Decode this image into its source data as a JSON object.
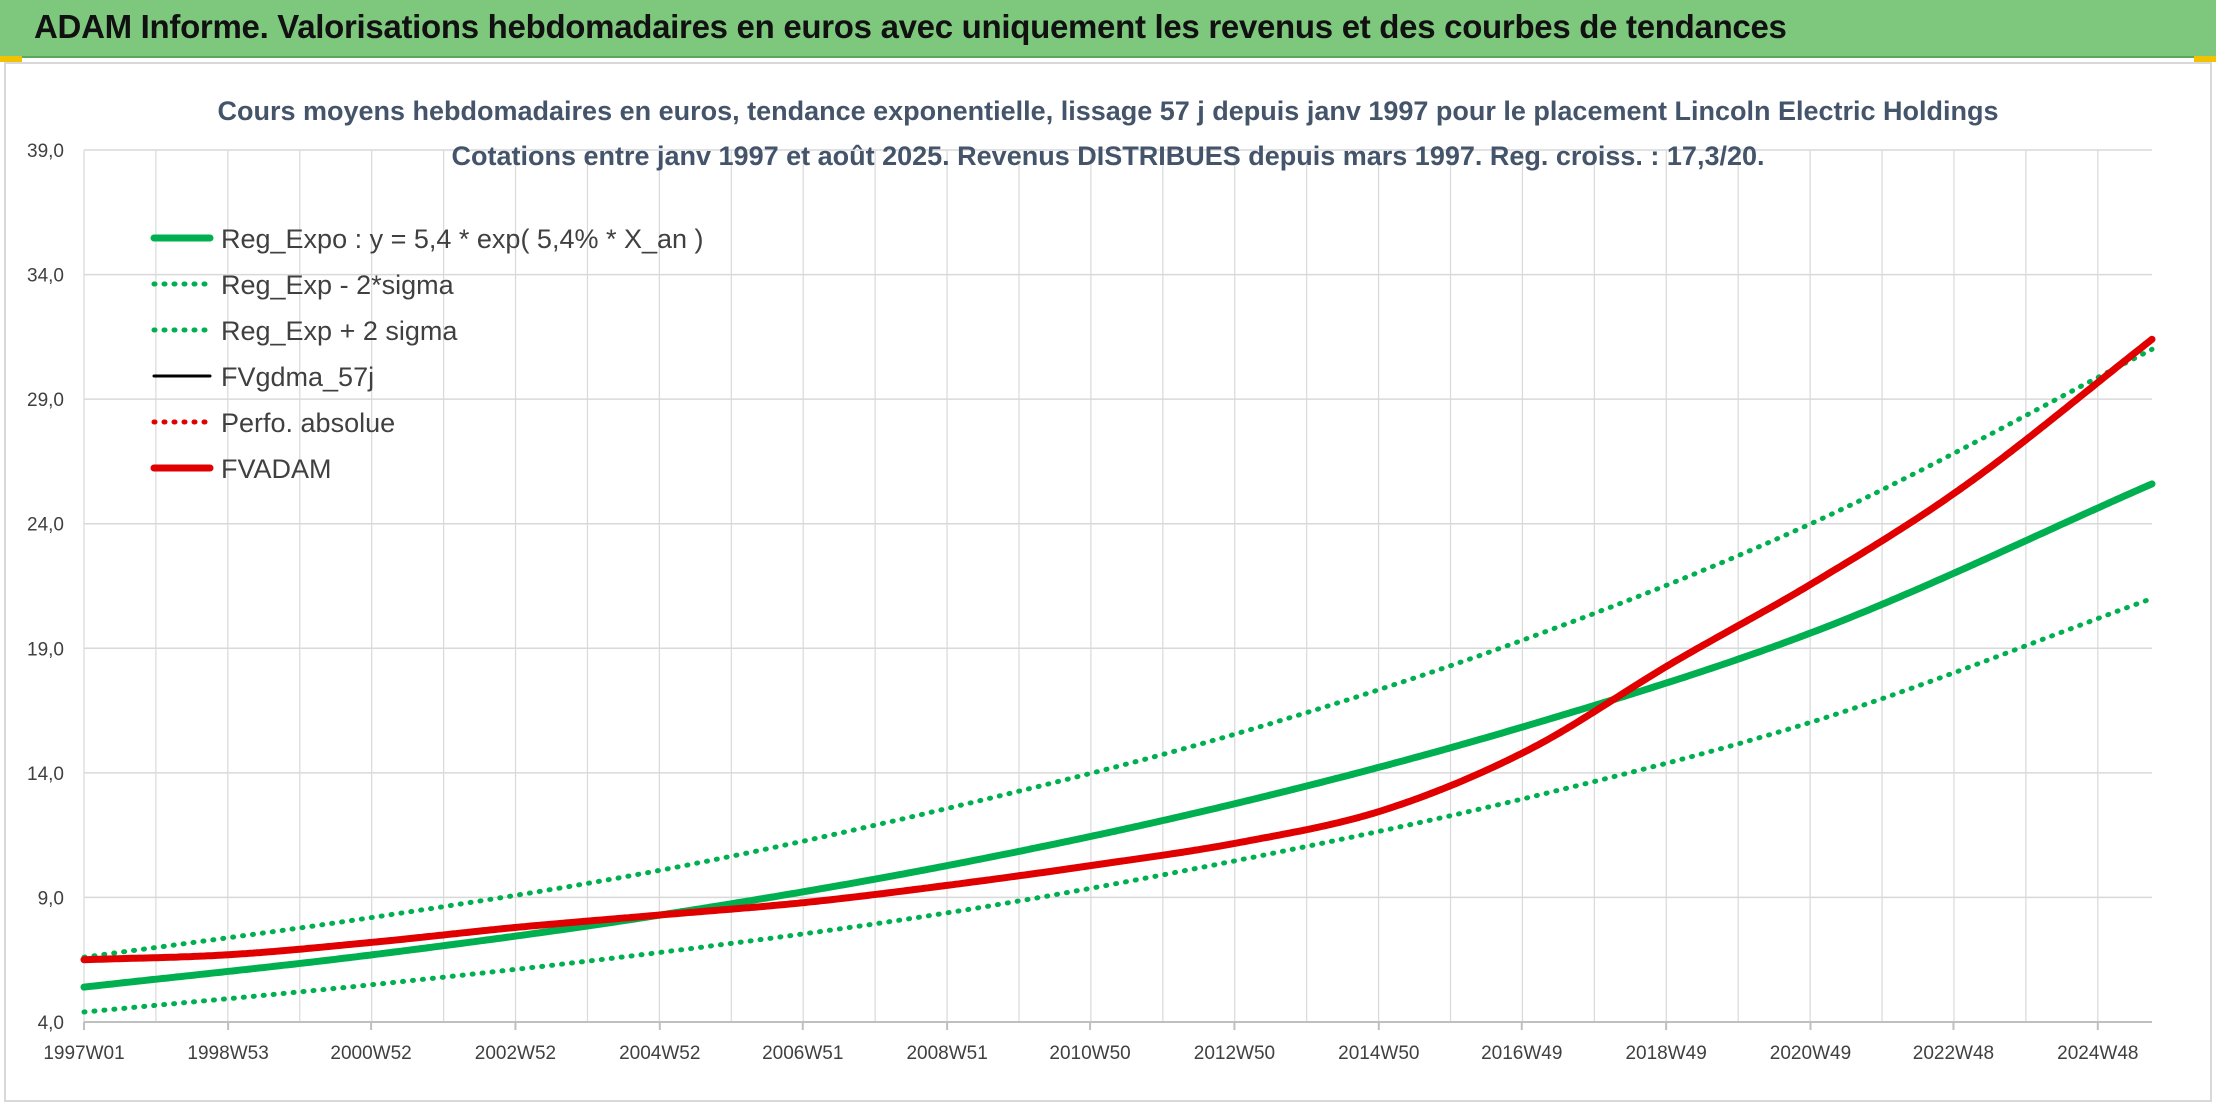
{
  "header": {
    "title": "ADAM Informe. Valorisations hebdomadaires en euros avec uniquement les revenus et des courbes de tendances"
  },
  "colors": {
    "header_bg": "#7ec87e",
    "regression": "#00b050",
    "price": "#000000",
    "adam": "#e00000",
    "grid": "#d9d9d9"
  },
  "chart_data": {
    "type": "line",
    "title_lines": [
      "Cours moyens hebdomadaires en euros, tendance exponentielle, lissage 57 j depuis janv 1997 pour le placement Lincoln Electric Holdings",
      "Cotations entre janv 1997 et août 2025. Revenus DISTRIBUES depuis mars 1997. Reg. croiss. : 17,3/20."
    ],
    "ylim": [
      4,
      39
    ],
    "y_ticks": [
      "4,0",
      "9,0",
      "14,0",
      "19,0",
      "24,0",
      "29,0",
      "34,0",
      "39,0"
    ],
    "x_ticks": [
      "1997W01",
      "1998W53",
      "2000W52",
      "2002W52",
      "2004W52",
      "2006W51",
      "2008W51",
      "2010W50",
      "2012W50",
      "2014W50",
      "2016W49",
      "2018W49",
      "2020W49",
      "2022W48",
      "2024W48"
    ],
    "x_range": [
      "1997W01",
      "2025W35"
    ],
    "grid": true,
    "legend_position": "top-left",
    "series": [
      {
        "name": "Reg_Expo : y = 5,4 * exp( 5,4% *  X_an )",
        "style": "solid-thick",
        "color": "#00b050",
        "x": [
          "1997W01",
          "2001W01",
          "2005W01",
          "2009W01",
          "2013W01",
          "2017W01",
          "2021W01",
          "2025W35"
        ],
        "y": [
          5.4,
          6.7,
          8.3,
          10.3,
          12.8,
          15.9,
          19.7,
          25.6
        ]
      },
      {
        "name": "Reg_Exp - 2*sigma",
        "style": "dotted",
        "color": "#00b050",
        "x": [
          "1997W01",
          "2001W01",
          "2005W01",
          "2009W01",
          "2013W01",
          "2017W01",
          "2021W01",
          "2025W35"
        ],
        "y": [
          4.4,
          5.5,
          6.8,
          8.4,
          10.5,
          13.0,
          16.1,
          21.0
        ]
      },
      {
        "name": "Reg_Exp + 2 sigma",
        "style": "dotted",
        "color": "#00b050",
        "x": [
          "1997W01",
          "2001W01",
          "2005W01",
          "2009W01",
          "2013W01",
          "2017W01",
          "2021W01",
          "2025W35"
        ],
        "y": [
          6.6,
          8.2,
          10.1,
          12.6,
          15.6,
          19.4,
          24.1,
          31.0
        ]
      },
      {
        "name": "FVgdma_57j",
        "style": "solid",
        "color": "#000000",
        "x": [
          "1997W01",
          "1999W01",
          "2001W01",
          "2003W01",
          "2005W01",
          "2007W01",
          "2009W01",
          "2011W01",
          "2013W01",
          "2015W01",
          "2017W01",
          "2019W01",
          "2021W01",
          "2023W01",
          "2025W35"
        ],
        "y": [
          6.5,
          6.7,
          7.2,
          7.8,
          8.3,
          8.8,
          9.5,
          10.3,
          11.2,
          12.5,
          14.9,
          18.4,
          21.7,
          25.4,
          31.4
        ]
      },
      {
        "name": "Perfo. absolue",
        "style": "dotted",
        "color": "#e00000",
        "x": [
          "1997W01",
          "1999W01",
          "2001W01",
          "2003W01",
          "2005W01",
          "2007W01",
          "2009W01",
          "2011W01",
          "2013W01",
          "2015W01",
          "2017W01",
          "2019W01",
          "2021W01",
          "2023W01",
          "2025W35"
        ],
        "y": [
          6.5,
          6.7,
          7.2,
          7.8,
          8.3,
          8.8,
          9.5,
          10.3,
          11.2,
          12.5,
          14.9,
          18.4,
          21.7,
          25.4,
          31.4
        ]
      },
      {
        "name": "FVADAM",
        "style": "solid-thick",
        "color": "#e00000",
        "x": [
          "1997W01",
          "1999W01",
          "2001W01",
          "2003W01",
          "2005W01",
          "2007W01",
          "2009W01",
          "2011W01",
          "2013W01",
          "2015W01",
          "2017W01",
          "2019W01",
          "2021W01",
          "2023W01",
          "2025W35"
        ],
        "y": [
          6.5,
          6.7,
          7.2,
          7.8,
          8.3,
          8.8,
          9.5,
          10.3,
          11.2,
          12.5,
          14.9,
          18.4,
          21.7,
          25.4,
          31.4
        ]
      }
    ]
  }
}
